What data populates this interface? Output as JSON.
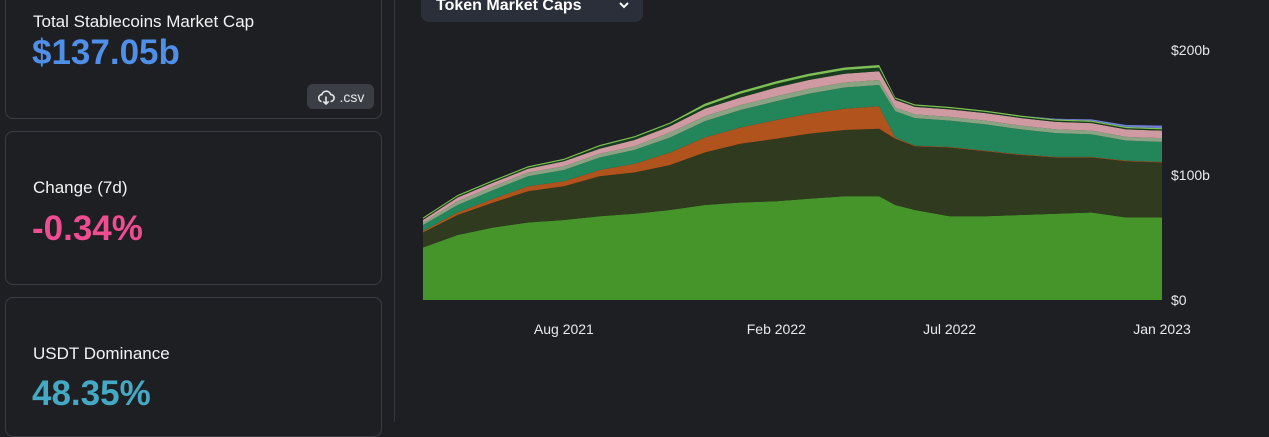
{
  "cards": {
    "market_cap": {
      "label": "Total Stablecoins Market Cap",
      "value": "$137.05b",
      "csv_label": ".csv"
    },
    "change": {
      "label": "Change (7d)",
      "value": "-0.34%"
    },
    "dominance": {
      "label": "USDT Dominance",
      "value": "48.35%"
    }
  },
  "icons": {
    "csv": "cloud-download-icon",
    "dropdown": "chevron-down-icon"
  },
  "dropdown": {
    "label": "Token Market Caps"
  },
  "chart_data": {
    "type": "area",
    "stacked": true,
    "title": "",
    "xlabel": "",
    "ylabel": "",
    "x_ticks": [
      "Aug 2021",
      "Feb 2022",
      "Jul 2022",
      "Jan 2023"
    ],
    "y_ticks": [
      "$0",
      "$100b",
      "$200b"
    ],
    "ylim": [
      0,
      200
    ],
    "y_unit": "billion USD",
    "grid": false,
    "legend": "none",
    "x": [
      "2021-04",
      "2021-05",
      "2021-06",
      "2021-07",
      "2021-08",
      "2021-09",
      "2021-10",
      "2021-11",
      "2021-12",
      "2022-01",
      "2022-02",
      "2022-03",
      "2022-04",
      "2022-05-01",
      "2022-05-15",
      "2022-06",
      "2022-07",
      "2022-08",
      "2022-09",
      "2022-10",
      "2022-11",
      "2022-12",
      "2023-01"
    ],
    "series": [
      {
        "color": "#46952a",
        "values": [
          42,
          52,
          58,
          62,
          64,
          67,
          69,
          72,
          76,
          78,
          79,
          81,
          83,
          83,
          76,
          72,
          67,
          67,
          68,
          69,
          70,
          66,
          66
        ]
      },
      {
        "color": "#2f3a1f",
        "values": [
          12,
          16,
          20,
          25,
          27,
          32,
          33,
          36,
          42,
          47,
          50,
          52,
          53,
          54,
          53,
          51,
          55,
          52,
          48,
          45,
          44,
          45,
          44
        ]
      },
      {
        "color": "#b0531d",
        "values": [
          1,
          2,
          3,
          4,
          4,
          5,
          7,
          10,
          12,
          13,
          15,
          16,
          17,
          18,
          1,
          0.5,
          0.5,
          0.5,
          0.5,
          0.5,
          0.5,
          0.5,
          0.5
        ]
      },
      {
        "color": "#23855a",
        "values": [
          5,
          6,
          7,
          8,
          9,
          10,
          11,
          12,
          13,
          14,
          15,
          16,
          17,
          17,
          21,
          22,
          21,
          21,
          20,
          19,
          18,
          16,
          16
        ]
      },
      {
        "color": "#8aa383",
        "values": [
          2,
          3,
          3,
          3,
          3,
          3,
          3,
          4,
          4,
          4,
          4,
          4,
          4,
          4,
          3,
          3,
          3,
          3,
          3,
          3,
          3,
          3,
          3
        ]
      },
      {
        "color": "#cf9aa1",
        "values": [
          2,
          3,
          3,
          3,
          4,
          4,
          5,
          5,
          6,
          6,
          7,
          7,
          7,
          7,
          6,
          6,
          6,
          6,
          6,
          6,
          6,
          6,
          6
        ]
      },
      {
        "color": "#173d1e",
        "values": [
          1,
          1,
          1,
          1,
          1,
          2,
          2,
          2,
          2,
          3,
          3,
          3,
          3,
          3,
          1,
          1,
          1,
          1,
          1,
          1,
          1,
          1,
          1
        ]
      },
      {
        "color": "#7fbf55",
        "values": [
          1,
          1,
          1,
          1,
          1,
          1,
          1,
          1,
          2,
          2,
          2,
          2,
          2,
          2,
          1,
          1,
          1,
          1,
          1,
          1,
          1,
          1,
          1
        ]
      },
      {
        "color": "#6d7fd6",
        "values": [
          0,
          0,
          0,
          0,
          0,
          0,
          0,
          0,
          0,
          0,
          0,
          0,
          0,
          0,
          0,
          0,
          0,
          0,
          0,
          0.5,
          1,
          1.5,
          2
        ]
      }
    ]
  }
}
